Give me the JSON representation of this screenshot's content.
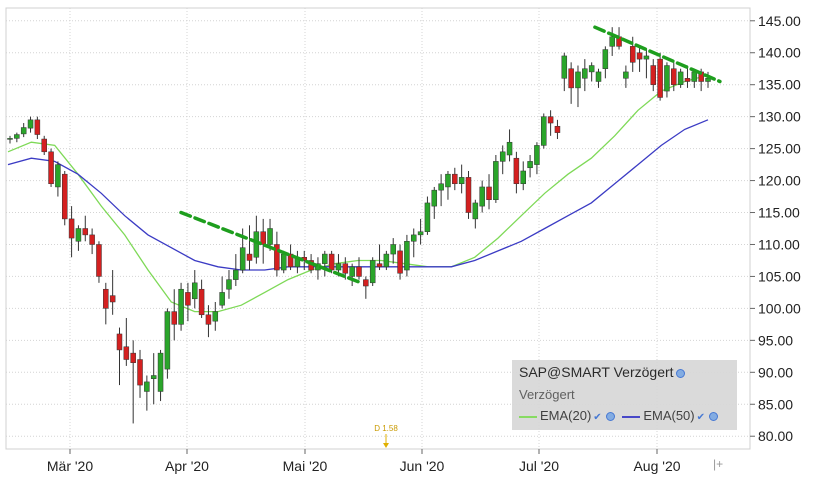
{
  "chart_data": {
    "type": "candlestick",
    "title": "SAP@SMART Verzögert",
    "subtitle": "Verzögert",
    "xlabel": "",
    "ylabel": "",
    "ylim": [
      78,
      147
    ],
    "y_ticks": [
      "145.00",
      "140.00",
      "135.00",
      "130.00",
      "125.00",
      "120.00",
      "115.00",
      "110.00",
      "105.00",
      "100.00",
      "95.00",
      "90.00",
      "85.00",
      "80.00"
    ],
    "x_ticks": [
      "Mär '20",
      "Apr '20",
      "Mai '20",
      "Jun '20",
      "Jul '20",
      "Aug '20"
    ],
    "grid": true,
    "legend_position": "bottom-right",
    "dividend_marker": "D 1.58",
    "colors": {
      "up": "#2aa52a",
      "down": "#d42020",
      "ema20": "#7ed957",
      "ema50": "#3b3bc4",
      "trend": "#1e9e1e"
    },
    "series": [
      {
        "name": "EMA(20)",
        "color": "#7ed957",
        "values": [
          124.5,
          126.0,
          125.5,
          121.0,
          116.0,
          111.5,
          106.0,
          101.0,
          99.5,
          99.5,
          100.5,
          102.5,
          104.5,
          106.0,
          107.0,
          107.5,
          107.5,
          107.0,
          106.5,
          106.5,
          108.0,
          111.0,
          114.5,
          118.0,
          121.0,
          123.5,
          127.0,
          131.0,
          134.0,
          135.5,
          136.5
        ]
      },
      {
        "name": "EMA(50)",
        "color": "#3b3bc4",
        "values": [
          122.5,
          123.5,
          123.0,
          121.0,
          118.0,
          114.5,
          111.5,
          109.5,
          107.5,
          106.5,
          106.0,
          106.0,
          106.5,
          106.5,
          106.5,
          106.5,
          106.5,
          106.5,
          106.5,
          106.5,
          107.5,
          109.0,
          110.5,
          112.5,
          114.5,
          116.5,
          119.5,
          122.5,
          125.5,
          128.0,
          129.5
        ]
      }
    ],
    "candles": [
      [
        126.5,
        127.0,
        125.8,
        126.6
      ],
      [
        126.6,
        127.5,
        126.0,
        127.2
      ],
      [
        127.3,
        129.0,
        126.8,
        128.3
      ],
      [
        128.2,
        130.0,
        127.5,
        129.5
      ],
      [
        129.5,
        130.0,
        126.5,
        127.2
      ],
      [
        126.5,
        127.0,
        124.0,
        124.5
      ],
      [
        124.5,
        125.0,
        119.0,
        119.5
      ],
      [
        119.0,
        123.0,
        117.5,
        122.5
      ],
      [
        121.0,
        121.5,
        113.0,
        114.0
      ],
      [
        114.0,
        116.0,
        108.0,
        111.0
      ],
      [
        110.5,
        113.0,
        109.0,
        112.5
      ],
      [
        112.5,
        114.5,
        110.5,
        111.5
      ],
      [
        111.5,
        112.5,
        108.5,
        110.0
      ],
      [
        110.0,
        110.5,
        104.0,
        105.0
      ],
      [
        103.0,
        104.0,
        97.5,
        100.0
      ],
      [
        102.0,
        106.0,
        99.0,
        101.0
      ],
      [
        96.0,
        97.0,
        88.0,
        93.5
      ],
      [
        94.0,
        98.5,
        91.0,
        92.0
      ],
      [
        93.0,
        95.0,
        82.0,
        91.5
      ],
      [
        92.0,
        93.5,
        86.0,
        88.0
      ],
      [
        87.0,
        89.5,
        84.0,
        88.5
      ],
      [
        89.0,
        93.0,
        85.0,
        89.5
      ],
      [
        87.0,
        93.5,
        85.5,
        93.0
      ],
      [
        90.5,
        100.0,
        89.0,
        99.5
      ],
      [
        99.5,
        103.0,
        95.0,
        97.5
      ],
      [
        97.5,
        104.0,
        96.5,
        103.0
      ],
      [
        102.5,
        104.0,
        98.0,
        100.5
      ],
      [
        101.5,
        106.0,
        100.0,
        104.0
      ],
      [
        103.0,
        104.5,
        98.5,
        99.0
      ],
      [
        99.0,
        100.5,
        95.5,
        97.5
      ],
      [
        98.0,
        101.0,
        96.5,
        99.5
      ],
      [
        100.5,
        105.0,
        100.0,
        102.5
      ],
      [
        103.0,
        106.0,
        101.5,
        104.5
      ],
      [
        104.5,
        108.5,
        103.5,
        106.0
      ],
      [
        106.0,
        112.5,
        105.5,
        109.5
      ],
      [
        108.5,
        113.0,
        106.0,
        107.5
      ],
      [
        108.0,
        114.5,
        107.0,
        112.0
      ],
      [
        112.0,
        114.0,
        107.0,
        110.0
      ],
      [
        110.0,
        114.0,
        109.0,
        112.5
      ],
      [
        110.0,
        112.0,
        105.0,
        106.0
      ],
      [
        106.0,
        109.0,
        105.5,
        108.5
      ],
      [
        108.5,
        110.0,
        106.0,
        106.5
      ],
      [
        106.5,
        109.0,
        105.5,
        108.0
      ],
      [
        108.0,
        109.0,
        106.0,
        107.5
      ],
      [
        107.5,
        108.5,
        105.5,
        106.0
      ],
      [
        106.0,
        108.0,
        104.5,
        107.0
      ],
      [
        107.0,
        109.0,
        105.0,
        108.5
      ],
      [
        108.5,
        109.0,
        105.5,
        106.0
      ],
      [
        106.0,
        108.5,
        105.0,
        107.0
      ],
      [
        107.0,
        108.0,
        104.5,
        105.5
      ],
      [
        105.0,
        107.0,
        103.5,
        106.5
      ],
      [
        106.5,
        108.0,
        104.5,
        105.0
      ],
      [
        104.5,
        105.0,
        101.5,
        103.5
      ],
      [
        104.0,
        108.0,
        103.5,
        107.5
      ],
      [
        107.0,
        110.0,
        106.0,
        106.5
      ],
      [
        106.5,
        109.0,
        106.0,
        108.5
      ],
      [
        108.5,
        111.0,
        107.0,
        110.0
      ],
      [
        109.0,
        110.0,
        104.5,
        105.5
      ],
      [
        106.0,
        111.5,
        105.0,
        110.5
      ],
      [
        110.5,
        112.5,
        108.0,
        111.5
      ],
      [
        111.5,
        114.0,
        110.0,
        112.0
      ],
      [
        112.0,
        117.5,
        111.5,
        116.5
      ],
      [
        116.0,
        119.0,
        114.0,
        118.5
      ],
      [
        118.5,
        121.0,
        116.0,
        119.5
      ],
      [
        119.0,
        121.5,
        117.0,
        121.0
      ],
      [
        121.0,
        122.0,
        118.5,
        119.5
      ],
      [
        119.5,
        122.5,
        118.0,
        120.5
      ],
      [
        120.5,
        121.5,
        114.0,
        115.0
      ],
      [
        114.0,
        117.0,
        112.5,
        116.5
      ],
      [
        116.0,
        120.0,
        115.0,
        119.0
      ],
      [
        119.0,
        121.0,
        115.5,
        117.0
      ],
      [
        117.0,
        124.0,
        116.5,
        123.0
      ],
      [
        123.0,
        125.5,
        121.0,
        124.5
      ],
      [
        124.0,
        128.0,
        123.0,
        126.0
      ],
      [
        123.5,
        124.5,
        118.0,
        119.5
      ],
      [
        119.5,
        123.0,
        118.5,
        121.5
      ],
      [
        122.0,
        124.0,
        120.5,
        123.0
      ],
      [
        122.5,
        126.0,
        121.0,
        125.5
      ],
      [
        125.5,
        130.5,
        125.0,
        130.0
      ],
      [
        130.0,
        131.0,
        127.0,
        129.0
      ],
      [
        128.5,
        129.5,
        126.5,
        127.5
      ],
      [
        136.0,
        140.0,
        134.0,
        139.5
      ],
      [
        137.5,
        138.5,
        132.0,
        134.5
      ],
      [
        134.5,
        138.0,
        131.5,
        137.0
      ],
      [
        136.0,
        139.0,
        134.0,
        137.5
      ],
      [
        137.0,
        138.5,
        135.5,
        138.0
      ],
      [
        135.5,
        137.5,
        134.5,
        137.0
      ],
      [
        137.5,
        141.0,
        136.0,
        140.5
      ],
      [
        141.0,
        144.0,
        139.5,
        142.5
      ],
      [
        142.5,
        144.0,
        140.5,
        141.0
      ],
      [
        136.0,
        138.0,
        134.5,
        137.0
      ],
      [
        141.0,
        142.5,
        137.0,
        138.5
      ],
      [
        140.0,
        141.0,
        137.0,
        139.0
      ],
      [
        139.0,
        140.5,
        136.0,
        139.5
      ],
      [
        138.0,
        139.0,
        134.0,
        135.0
      ],
      [
        139.0,
        140.0,
        132.5,
        133.0
      ],
      [
        134.0,
        138.5,
        133.0,
        138.0
      ],
      [
        137.5,
        138.5,
        134.0,
        135.0
      ],
      [
        135.0,
        137.5,
        134.5,
        137.0
      ],
      [
        136.0,
        138.0,
        134.5,
        135.5
      ],
      [
        135.5,
        137.5,
        134.5,
        137.0
      ],
      [
        137.0,
        137.5,
        134.0,
        135.5
      ],
      [
        135.5,
        137.0,
        134.5,
        136.0
      ]
    ],
    "trendlines": [
      {
        "from": [
          0.245,
          115.0
        ],
        "to": [
          0.483,
          104.0
        ]
      },
      {
        "from": [
          0.838,
          144.0
        ],
        "to": [
          0.997,
          135.5
        ]
      }
    ]
  },
  "legend": {
    "title": "SAP@SMART Verzögert",
    "subtitle": "Verzögert",
    "items": [
      {
        "label": "EMA(20)",
        "color": "#7ed957"
      },
      {
        "label": "EMA(50)",
        "color": "#3b3bc4"
      }
    ]
  }
}
